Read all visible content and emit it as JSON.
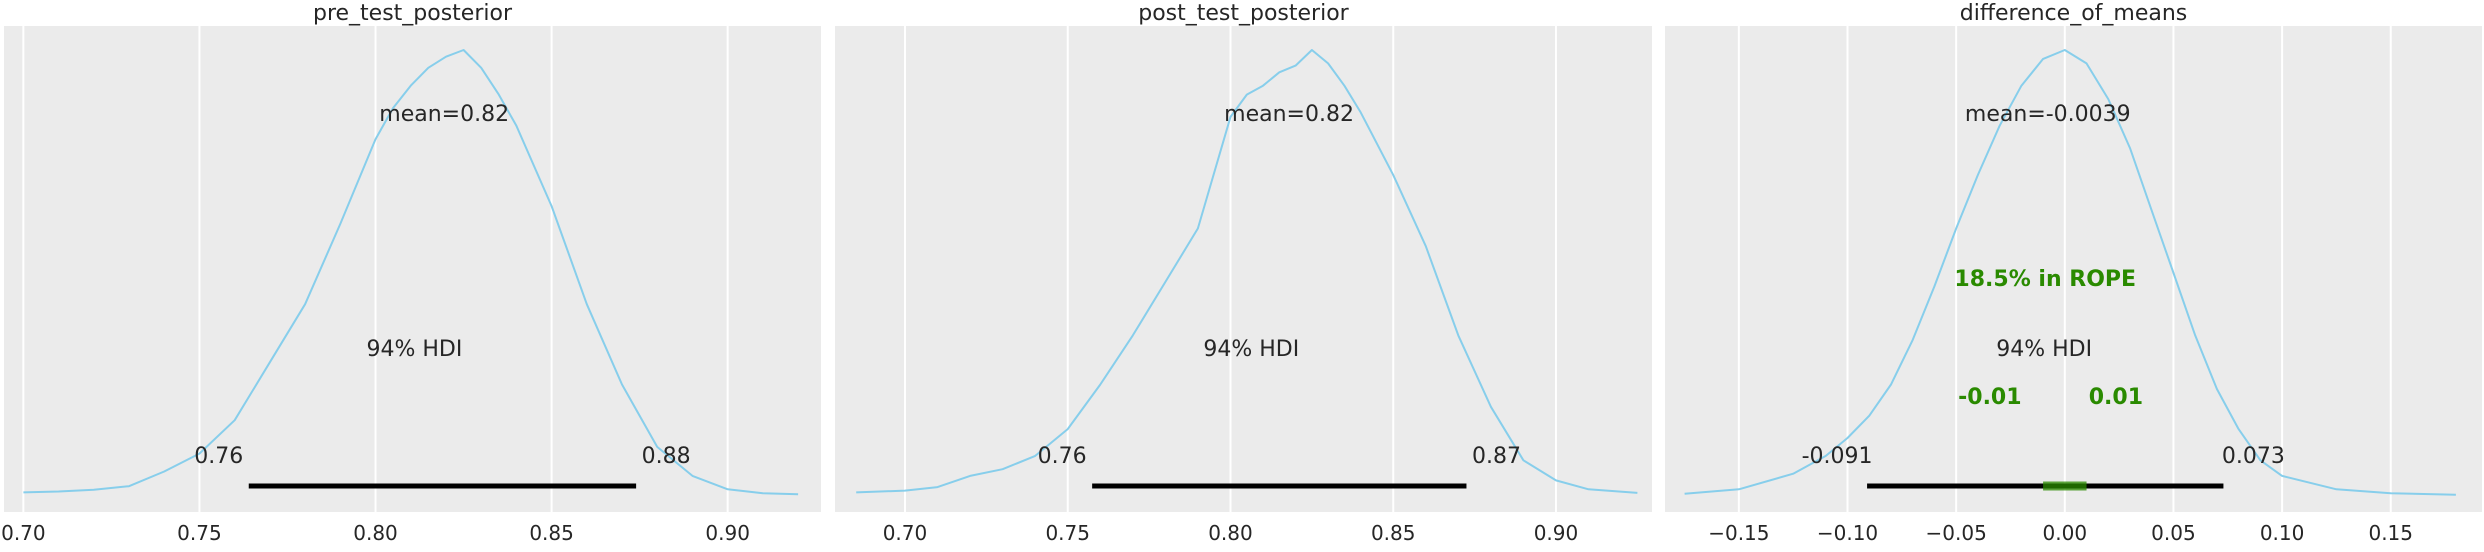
{
  "chart_data": [
    {
      "type": "area",
      "title": "pre_test_posterior",
      "xlim": [
        0.6945,
        0.9265
      ],
      "x_ticks": [
        0.7,
        0.75,
        0.8,
        0.85,
        0.9
      ],
      "x_tick_labels": [
        "0.70",
        "0.75",
        "0.80",
        "0.85",
        "0.90"
      ],
      "density": {
        "x": [
          0.7,
          0.71,
          0.72,
          0.73,
          0.74,
          0.75,
          0.76,
          0.77,
          0.78,
          0.79,
          0.8,
          0.805,
          0.81,
          0.815,
          0.82,
          0.825,
          0.83,
          0.835,
          0.84,
          0.85,
          0.86,
          0.87,
          0.88,
          0.89,
          0.9,
          0.91,
          0.92
        ],
        "y": [
          0.008,
          0.01,
          0.014,
          0.022,
          0.055,
          0.095,
          0.17,
          0.3,
          0.43,
          0.61,
          0.8,
          0.87,
          0.92,
          0.96,
          0.985,
          1.0,
          0.96,
          0.9,
          0.83,
          0.65,
          0.43,
          0.25,
          0.11,
          0.045,
          0.015,
          0.006,
          0.004
        ]
      },
      "mean_label": "mean=0.82",
      "hdi": {
        "label": "94% HDI",
        "low": 0.76,
        "high": 0.88,
        "low_label": "0.76",
        "high_label": "0.88",
        "low_x": 0.764,
        "high_x": 0.874
      },
      "grid": true
    },
    {
      "type": "area",
      "title": "post_test_posterior",
      "xlim": [
        0.6785,
        0.9295
      ],
      "x_ticks": [
        0.7,
        0.75,
        0.8,
        0.85,
        0.9
      ],
      "x_tick_labels": [
        "0.70",
        "0.75",
        "0.80",
        "0.85",
        "0.90"
      ],
      "density": {
        "x": [
          0.685,
          0.7,
          0.71,
          0.72,
          0.73,
          0.74,
          0.75,
          0.76,
          0.77,
          0.78,
          0.79,
          0.8,
          0.805,
          0.81,
          0.815,
          0.82,
          0.825,
          0.83,
          0.835,
          0.84,
          0.85,
          0.86,
          0.87,
          0.88,
          0.89,
          0.9,
          0.91,
          0.925
        ],
        "y": [
          0.008,
          0.012,
          0.02,
          0.045,
          0.06,
          0.09,
          0.15,
          0.25,
          0.36,
          0.48,
          0.6,
          0.85,
          0.9,
          0.92,
          0.95,
          0.965,
          1.0,
          0.97,
          0.92,
          0.86,
          0.72,
          0.56,
          0.36,
          0.2,
          0.08,
          0.035,
          0.015,
          0.007
        ]
      },
      "mean_label": "mean=0.82",
      "hdi": {
        "label": "94% HDI",
        "low": 0.76,
        "high": 0.87,
        "low_label": "0.76",
        "high_label": "0.87",
        "low_x": 0.7575,
        "high_x": 0.8725
      },
      "grid": true
    },
    {
      "type": "area",
      "title": "difference_of_means",
      "xlim": [
        -0.184,
        0.192
      ],
      "x_ticks": [
        -0.15,
        -0.1,
        -0.05,
        0.0,
        0.05,
        0.1,
        0.15
      ],
      "x_tick_labels": [
        "−0.15",
        "−0.10",
        "−0.05",
        "0.00",
        "0.05",
        "0.10",
        "0.15"
      ],
      "density": {
        "x": [
          -0.175,
          -0.15,
          -0.125,
          -0.11,
          -0.1,
          -0.09,
          -0.08,
          -0.07,
          -0.06,
          -0.05,
          -0.04,
          -0.03,
          -0.02,
          -0.01,
          0.0,
          0.01,
          0.02,
          0.03,
          0.04,
          0.05,
          0.06,
          0.07,
          0.08,
          0.09,
          0.1,
          0.125,
          0.15,
          0.18
        ],
        "y": [
          0.005,
          0.015,
          0.05,
          0.09,
          0.13,
          0.18,
          0.25,
          0.35,
          0.47,
          0.6,
          0.72,
          0.83,
          0.92,
          0.98,
          1.0,
          0.97,
          0.89,
          0.78,
          0.64,
          0.5,
          0.36,
          0.24,
          0.15,
          0.08,
          0.045,
          0.015,
          0.006,
          0.003
        ]
      },
      "mean_label": "mean=-0.0039",
      "hdi": {
        "label": "94% HDI",
        "low": -0.091,
        "high": 0.073,
        "low_label": "-0.091",
        "high_label": "0.073",
        "low_x": -0.091,
        "high_x": 0.073
      },
      "rope": {
        "label": "18.5% in ROPE",
        "low": -0.01,
        "high": 0.01,
        "low_label": "-0.01",
        "high_label": "0.01",
        "color": "#2a8a00"
      },
      "grid": true
    }
  ],
  "colors": {
    "axes_bg": "#ebebeb",
    "grid": "#ffffff",
    "kde_line": "#87ceeb",
    "hdi_bar": "#000000",
    "text": "#262626",
    "rope_text": "#2a8a00"
  }
}
